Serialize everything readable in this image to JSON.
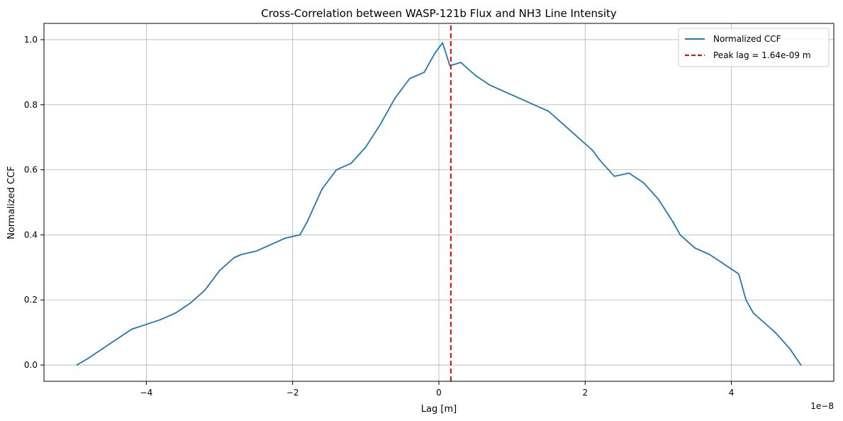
{
  "chart_data": {
    "type": "line",
    "title": "Cross-Correlation between WASP-121b Flux and NH3 Line Intensity",
    "xlabel": "Lag [m]",
    "ylabel": "Normalized CCF",
    "x_offset_label": "1e−8",
    "xlim": [
      -5.4,
      5.4
    ],
    "ylim": [
      -0.05,
      1.05
    ],
    "x_unit_scale": 1e-08,
    "xticks": [
      -4,
      -2,
      0,
      2,
      4
    ],
    "xtick_labels": [
      "−4",
      "−2",
      "0",
      "2",
      "4"
    ],
    "yticks": [
      0.0,
      0.2,
      0.4,
      0.6,
      0.8,
      1.0
    ],
    "ytick_labels": [
      "0.0",
      "0.2",
      "0.4",
      "0.6",
      "0.8",
      "1.0"
    ],
    "grid": true,
    "legend_position": "top-right",
    "series": [
      {
        "name": "Normalized CCF",
        "color": "#1f77b4",
        "style": "solid",
        "x": [
          -4.95,
          -4.8,
          -4.6,
          -4.4,
          -4.2,
          -4.0,
          -3.8,
          -3.6,
          -3.4,
          -3.2,
          -3.0,
          -2.8,
          -2.7,
          -2.5,
          -2.3,
          -2.1,
          -1.9,
          -1.8,
          -1.6,
          -1.4,
          -1.2,
          -1.0,
          -0.8,
          -0.6,
          -0.4,
          -0.2,
          -0.05,
          0.05,
          0.15,
          0.3,
          0.5,
          0.7,
          0.9,
          1.1,
          1.3,
          1.5,
          1.7,
          1.9,
          2.1,
          2.2,
          2.4,
          2.6,
          2.8,
          3.0,
          3.2,
          3.3,
          3.5,
          3.7,
          3.9,
          4.1,
          4.2,
          4.3,
          4.5,
          4.6,
          4.8,
          4.95
        ],
        "y": [
          0.0,
          0.02,
          0.05,
          0.08,
          0.11,
          0.125,
          0.14,
          0.16,
          0.19,
          0.23,
          0.29,
          0.33,
          0.34,
          0.35,
          0.37,
          0.39,
          0.4,
          0.44,
          0.54,
          0.6,
          0.62,
          0.67,
          0.74,
          0.82,
          0.88,
          0.9,
          0.96,
          0.99,
          0.92,
          0.93,
          0.89,
          0.86,
          0.84,
          0.82,
          0.8,
          0.78,
          0.74,
          0.7,
          0.66,
          0.63,
          0.58,
          0.59,
          0.56,
          0.51,
          0.44,
          0.4,
          0.36,
          0.34,
          0.31,
          0.28,
          0.2,
          0.16,
          0.12,
          0.1,
          0.05,
          0.0
        ]
      },
      {
        "name": "Peak lag = 1.64e-09 m",
        "color": "#ff0000",
        "style": "dashed",
        "x": [
          0.164,
          0.164
        ],
        "y": [
          -0.05,
          1.05
        ]
      }
    ]
  }
}
